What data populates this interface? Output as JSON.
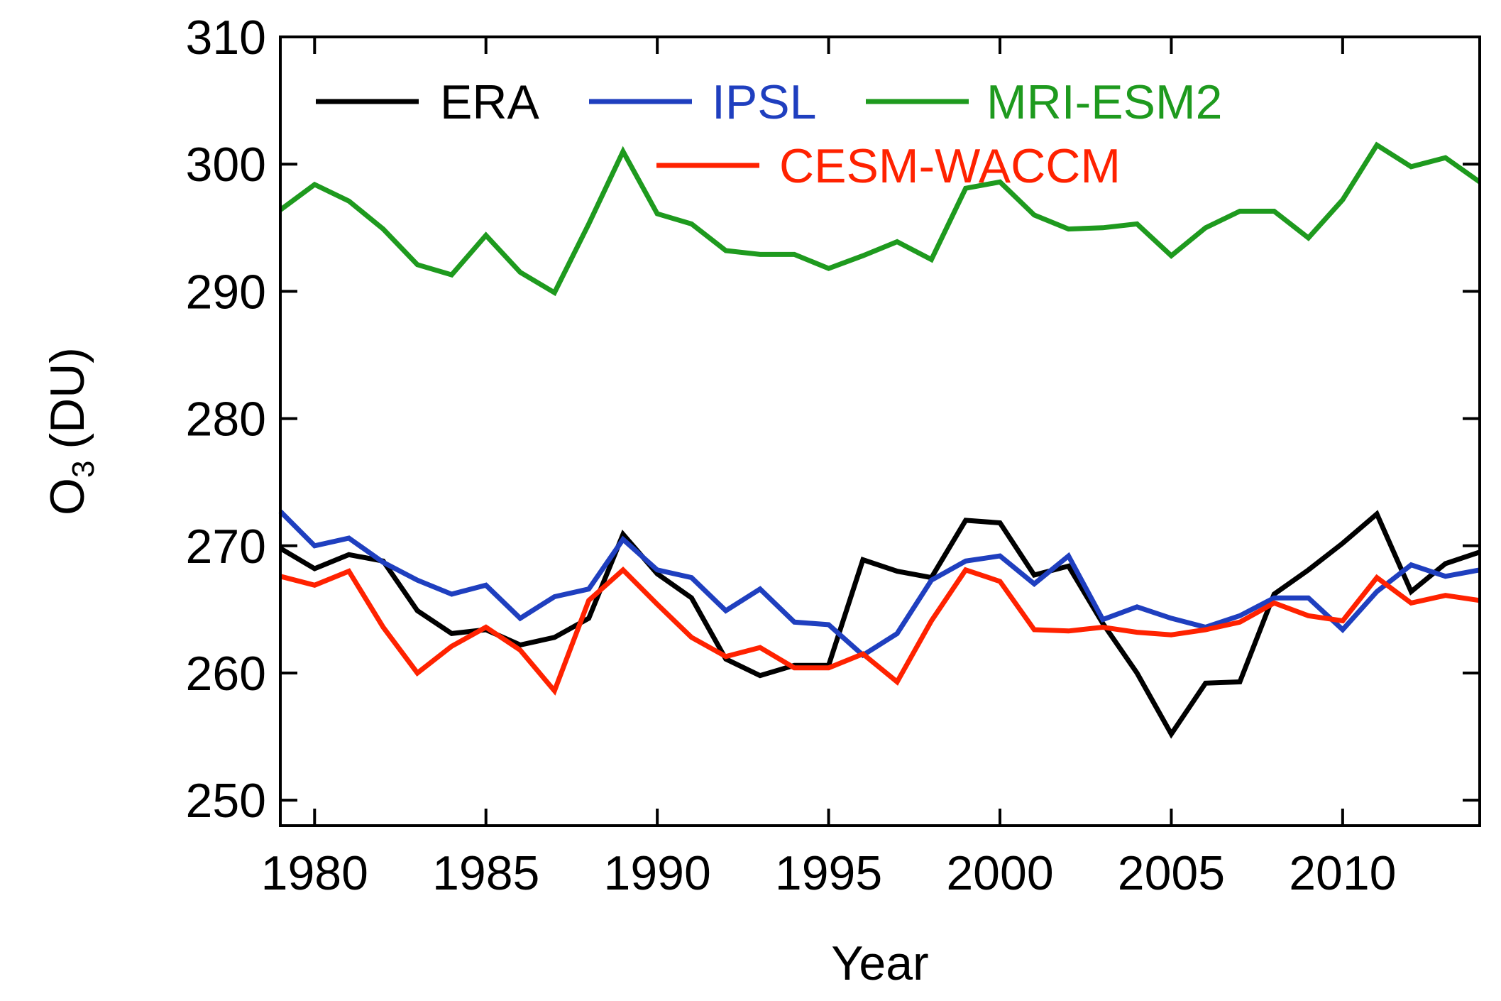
{
  "chart_data": {
    "type": "line",
    "title": "",
    "xlabel": "Year",
    "ylabel_main": "O",
    "ylabel_sub": "3",
    "ylabel_unit": "(DU)",
    "xlim": [
      1979,
      2014
    ],
    "ylim": [
      248,
      310
    ],
    "xticks": [
      1980,
      1985,
      1990,
      1995,
      2000,
      2005,
      2010
    ],
    "yticks": [
      250,
      260,
      270,
      280,
      290,
      300,
      310
    ],
    "grid": false,
    "legend_position": "top",
    "x": [
      1979,
      1980,
      1981,
      1982,
      1983,
      1984,
      1985,
      1986,
      1987,
      1988,
      1989,
      1990,
      1991,
      1992,
      1993,
      1994,
      1995,
      1996,
      1997,
      1998,
      1999,
      2000,
      2001,
      2002,
      2003,
      2004,
      2005,
      2006,
      2007,
      2008,
      2009,
      2010,
      2011,
      2012,
      2013,
      2014
    ],
    "series": [
      {
        "name": "ERA",
        "color": "#000000",
        "values": [
          269.8,
          268.2,
          269.3,
          268.8,
          264.9,
          263.1,
          263.4,
          262.2,
          262.8,
          264.3,
          270.9,
          267.8,
          265.9,
          261.1,
          259.8,
          260.6,
          260.6,
          268.9,
          268.0,
          267.5,
          272.0,
          271.8,
          267.7,
          268.4,
          263.9,
          260.0,
          255.2,
          259.2,
          259.3,
          266.2,
          268.1,
          270.2,
          272.5,
          266.4,
          268.6,
          269.5
        ]
      },
      {
        "name": "IPSL",
        "color": "#1f3fbf",
        "values": [
          272.7,
          270.0,
          270.6,
          268.7,
          267.3,
          266.2,
          266.9,
          264.3,
          266.0,
          266.6,
          270.5,
          268.1,
          267.5,
          264.9,
          266.6,
          264.0,
          263.8,
          261.4,
          263.1,
          267.3,
          268.8,
          269.2,
          267.0,
          269.2,
          264.2,
          265.2,
          264.3,
          263.6,
          264.5,
          265.9,
          265.9,
          263.4,
          266.4,
          268.5,
          267.6,
          268.1
        ]
      },
      {
        "name": "MRI-ESM2",
        "color": "#1e9a1e",
        "values": [
          296.4,
          298.4,
          297.1,
          294.9,
          292.1,
          291.3,
          294.4,
          291.5,
          289.9,
          295.3,
          301.0,
          296.1,
          295.3,
          293.2,
          292.9,
          292.9,
          291.8,
          292.8,
          293.9,
          292.5,
          298.1,
          298.6,
          296.0,
          294.9,
          295.0,
          295.3,
          292.8,
          295.0,
          296.3,
          296.3,
          294.2,
          297.2,
          301.5,
          299.8,
          300.5,
          298.6
        ]
      },
      {
        "name": "CESM-WACCM",
        "color": "#ff2200",
        "values": [
          267.6,
          266.9,
          268.0,
          263.6,
          260.0,
          262.1,
          263.6,
          261.8,
          258.6,
          265.7,
          268.1,
          265.4,
          262.8,
          261.3,
          262.0,
          260.4,
          260.4,
          261.5,
          259.3,
          264.1,
          268.1,
          267.2,
          263.4,
          263.3,
          263.6,
          263.2,
          263.0,
          263.4,
          264.0,
          265.5,
          264.5,
          264.1,
          267.5,
          265.5,
          266.1,
          265.7
        ]
      }
    ]
  }
}
